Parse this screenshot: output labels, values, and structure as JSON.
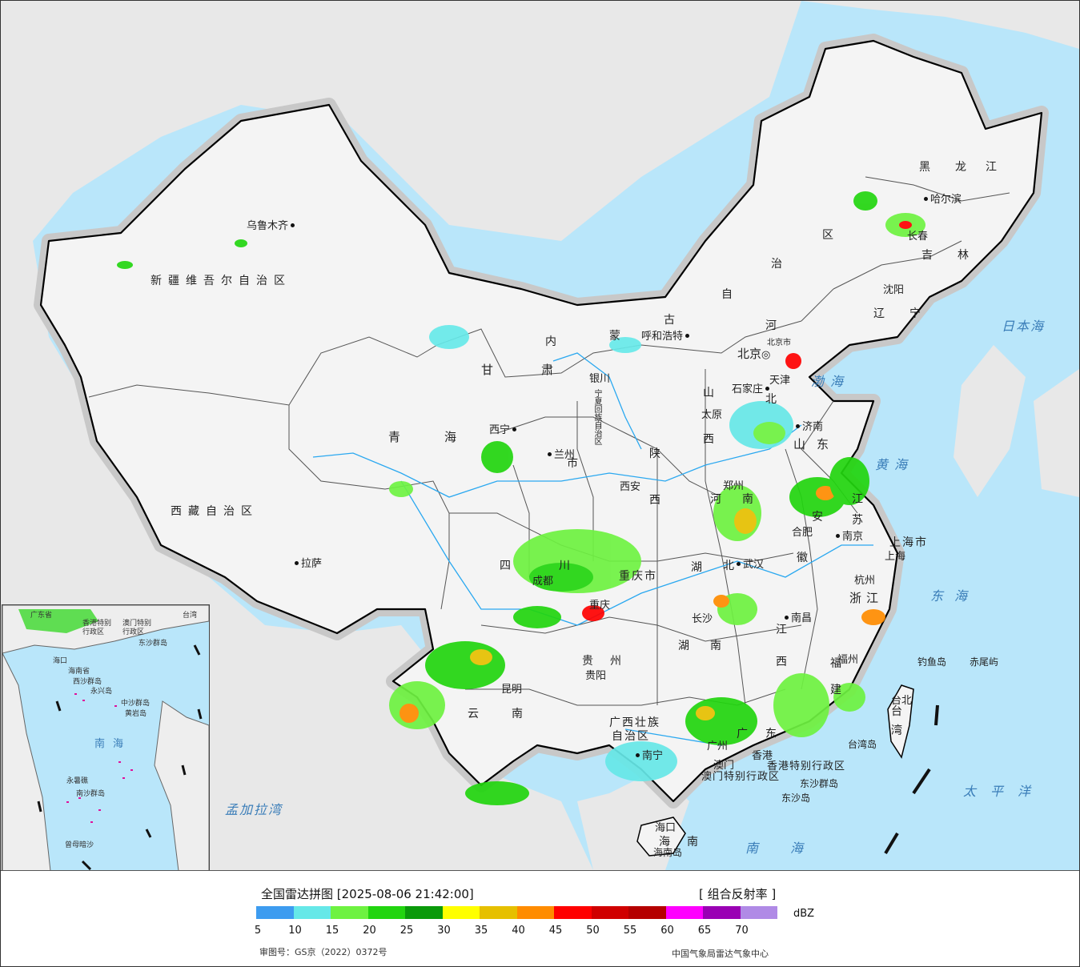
{
  "map": {
    "cities": {
      "urumqi": "乌鲁木齐",
      "lhasa": "拉萨",
      "xining": "西宁",
      "lanzhou": "兰州",
      "yinchuan": "银川",
      "hohhot": "呼和浩特",
      "beijing": "北京",
      "tianjin": "天津",
      "shijiazhuang": "石家庄",
      "taiyuan": "太原",
      "jinan": "济南",
      "zhengzhou": "郑州",
      "xian": "西安",
      "chengdu": "成都",
      "chongqing": "重庆",
      "wuhan": "武汉",
      "hefei": "合肥",
      "nanjing": "南京",
      "shanghai": "上海",
      "hangzhou": "杭州",
      "nanchang": "南昌",
      "changsha": "长沙",
      "guiyang": "贵阳",
      "kunming": "昆明",
      "nanning": "南宁",
      "guangzhou": "广州",
      "hongkong": "香港",
      "macau": "澳门",
      "fuzhou": "福州",
      "taipei": "台北",
      "haikou": "海口",
      "shenyang": "沈阳",
      "changchun": "长春",
      "harbin": "哈尔滨"
    },
    "provinces": {
      "xinjiang": "新疆维吾尔自治区",
      "xizang": "西藏自治区",
      "qinghai": "青海",
      "gansu": "甘肃",
      "neimenggu": [
        "内",
        "蒙",
        "古",
        "自",
        "治",
        "区"
      ],
      "ningxia": "宁夏回族自治区",
      "shaanxi": [
        "陕",
        "西"
      ],
      "shanxi": [
        "山",
        "西"
      ],
      "hebei": [
        "河",
        "北"
      ],
      "beijing_city": "北京市",
      "tianjin_city": "天津",
      "shandong": "山东",
      "henan": [
        "河",
        "南"
      ],
      "jiangsu": [
        "江",
        "苏"
      ],
      "anhui": [
        "安",
        "徽"
      ],
      "shanghai_city": "上海市",
      "zhejiang": "浙江",
      "hubei": [
        "湖",
        "北"
      ],
      "hunan": [
        "湖",
        "南"
      ],
      "jiangxi": [
        "江",
        "西"
      ],
      "fujian": [
        "福",
        "建"
      ],
      "sichuan": [
        "四",
        "川"
      ],
      "chongqing_city": "重庆市",
      "guizhou": [
        "贵",
        "州"
      ],
      "yunnan": [
        "云",
        "南"
      ],
      "guangxi": [
        "广西壮族",
        "自治区"
      ],
      "guangdong": [
        "广",
        "东"
      ],
      "hainan": [
        "海",
        "南"
      ],
      "taiwan": [
        "台",
        "湾"
      ],
      "liaoning": [
        "辽",
        "宁"
      ],
      "jilin": [
        "吉",
        "林"
      ],
      "heilongjiang": [
        "黑",
        "龙",
        "江"
      ],
      "hk_sar": "香港特别行政区",
      "macau_sar": "澳门特别行政区",
      "gansu_lanzhou_extra": "市"
    },
    "seas": {
      "bohai": "渤海",
      "yellow_sea": "黄海",
      "east_sea": "东海",
      "south_sea": "南海",
      "pacific": "太平洋",
      "japan_sea": "日本海",
      "bengal_bay": "孟加拉湾"
    },
    "islands": {
      "diaoyu": "钓鱼岛",
      "chiwei": "赤尾屿",
      "taiwan_island": "台湾岛",
      "dongsha_islands": "东沙群岛",
      "dongsha_island": "东沙岛",
      "hainan_island": "海南岛"
    },
    "inset": {
      "labels": [
        "广东省",
        "香港特别",
        "澳门特别",
        "行政区",
        "行政区",
        "台湾",
        "海口",
        "海南省",
        "西沙群岛",
        "永兴岛",
        "中沙群岛",
        "黄岩岛",
        "南海",
        "永暑礁",
        "南沙群岛",
        "曾母暗沙",
        "东沙群岛"
      ]
    }
  },
  "legend": {
    "title": "全国雷达拼图 [2025-08-06 21:42:00]",
    "product": "[ 组合反射率 ]",
    "unit": "dBZ",
    "colors": [
      "#3d9cf0",
      "#66e8e8",
      "#6ef241",
      "#22d50f",
      "#0a9a0a",
      "#ffff00",
      "#e6c000",
      "#ff8c00",
      "#ff0000",
      "#d00000",
      "#b50000",
      "#ff00ff",
      "#9a00b4",
      "#b08ae6"
    ],
    "ticks": [
      "5",
      "10",
      "15",
      "20",
      "25",
      "30",
      "35",
      "40",
      "45",
      "50",
      "55",
      "60",
      "65",
      "70"
    ],
    "approval": "审图号：GS京（2022）0372号",
    "agency": "中国气象局雷达气象中心"
  }
}
